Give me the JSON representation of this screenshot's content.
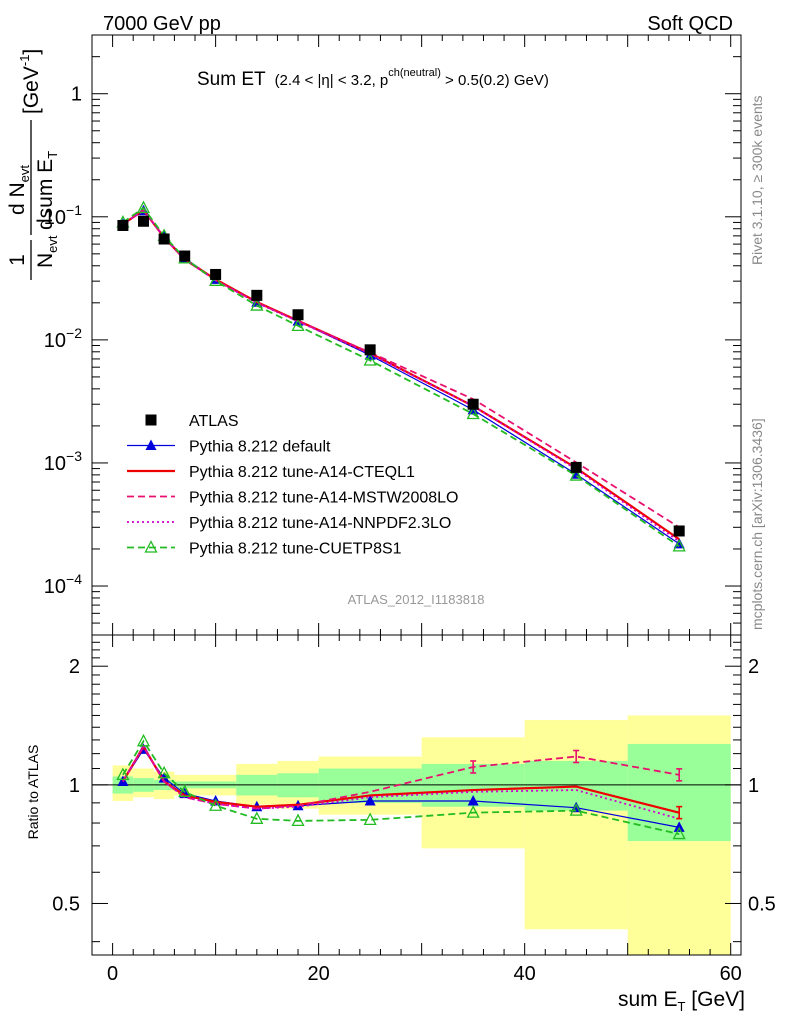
{
  "header": {
    "left": "7000 GeV pp",
    "right": "Soft QCD"
  },
  "side_labels": {
    "rivet": "Rivet 3.1.10, ≥ 300k events",
    "mcplots": "mcplots.cern.ch [arXiv:1306.3436]"
  },
  "main_title": {
    "text": "Sum ET",
    "cut_a": "(2.4 < |",
    "eta": "η",
    "cut_b": "| < 3.2, p",
    "sup": "ch(neutral)",
    "cut_c": " > 0.5(0.2) GeV)"
  },
  "analysis_tag": "ATLAS_2012_I1183818",
  "y_axis_label": {
    "one": "1",
    "n": "N",
    "n_sub": "evt",
    "dn": "d N",
    "dn_sub": "evt",
    "dsum": "dsum E",
    "dsum_sub": "T",
    "unit_a": "[GeV",
    "unit_sup": "-1",
    "unit_b": "]"
  },
  "x_axis_label": {
    "a": "sum E",
    "sub": "T",
    "b": " [GeV]"
  },
  "ratio_label": "Ratio to ATLAS",
  "chart_data": [
    {
      "panel": "main",
      "type": "scatter",
      "scale": "log",
      "xlim": [
        -2,
        61
      ],
      "ylim": [
        4e-05,
        3.0
      ],
      "x_ticks": [
        0,
        20,
        40,
        60
      ],
      "y_tick_labels": [
        {
          "value": 1,
          "base": "1",
          "exp": ""
        },
        {
          "value": 0.1,
          "base": "10",
          "exp": "−1"
        },
        {
          "value": 0.01,
          "base": "10",
          "exp": "−2"
        },
        {
          "value": 0.001,
          "base": "10",
          "exp": "−3"
        },
        {
          "value": 0.0001,
          "base": "10",
          "exp": "−4"
        }
      ],
      "x": [
        1,
        3,
        5,
        7,
        10,
        14,
        18,
        25,
        35,
        45,
        55
      ],
      "series": [
        {
          "name": "ATLAS",
          "color": "#000000",
          "style": "data",
          "marker": "square",
          "values": [
            0.085,
            0.092,
            0.066,
            0.048,
            0.034,
            0.023,
            0.016,
            0.0083,
            0.003,
            0.00092,
            0.00028
          ]
        },
        {
          "name": "Pythia 8.212 default",
          "color": "#0000dd",
          "style": "solid-thin",
          "marker": "triangle-filled",
          "values": [
            0.087,
            0.112,
            0.069,
            0.046,
            0.031,
            0.0202,
            0.0142,
            0.0075,
            0.0027,
            0.00081,
            0.00022
          ]
        },
        {
          "name": "Pythia 8.212 tune-A14-CTEQL1",
          "color": "#ee0000",
          "style": "solid-thick",
          "marker": "none",
          "values": [
            0.087,
            0.113,
            0.068,
            0.045,
            0.031,
            0.0203,
            0.0143,
            0.0078,
            0.0029,
            0.00091,
            0.00024
          ]
        },
        {
          "name": "Pythia 8.212 tune-A14-MSTW2008LO",
          "color": "#e8116e",
          "style": "dashed",
          "marker": "none",
          "values": [
            0.087,
            0.113,
            0.068,
            0.045,
            0.0305,
            0.0201,
            0.0142,
            0.0079,
            0.0033,
            0.00101,
            0.0003
          ]
        },
        {
          "name": "Pythia 8.212 tune-A14-NNPDF2.3LO",
          "color": "#d100d1",
          "style": "dotted",
          "marker": "none",
          "values": [
            0.087,
            0.113,
            0.068,
            0.045,
            0.0305,
            0.02,
            0.0141,
            0.0077,
            0.0029,
            0.00089,
            0.00023
          ]
        },
        {
          "name": "Pythia 8.212 tune-CUETP8S1",
          "color": "#22bb22",
          "style": "dashed",
          "marker": "triangle-open",
          "values": [
            0.09,
            0.118,
            0.07,
            0.046,
            0.0302,
            0.019,
            0.013,
            0.0068,
            0.0025,
            0.00079,
            0.00021
          ]
        }
      ]
    },
    {
      "panel": "ratio",
      "type": "line",
      "scale": "log",
      "xlabel": "sum E_T [GeV]",
      "ylabel": "Ratio to ATLAS",
      "xlim": [
        -2,
        61
      ],
      "ylim": [
        0.37,
        2.4
      ],
      "x_ticks": [
        0,
        20,
        40,
        60
      ],
      "y_ticks": [
        0.5,
        1,
        2
      ],
      "bins": [
        [
          0,
          2
        ],
        [
          2,
          4
        ],
        [
          4,
          6
        ],
        [
          6,
          8
        ],
        [
          8,
          12
        ],
        [
          12,
          16
        ],
        [
          16,
          20
        ],
        [
          20,
          30
        ],
        [
          30,
          40
        ],
        [
          40,
          50
        ],
        [
          50,
          60
        ]
      ],
      "band_stat": [
        [
          0.95,
          1.05
        ],
        [
          0.96,
          1.04
        ],
        [
          0.97,
          1.03
        ],
        [
          0.98,
          1.02
        ],
        [
          0.98,
          1.02
        ],
        [
          0.94,
          1.06
        ],
        [
          0.93,
          1.07
        ],
        [
          0.9,
          1.1
        ],
        [
          0.88,
          1.13
        ],
        [
          0.86,
          1.15
        ],
        [
          0.72,
          1.27
        ]
      ],
      "band_syst": [
        [
          0.91,
          1.12
        ],
        [
          0.93,
          1.1
        ],
        [
          0.92,
          1.08
        ],
        [
          0.94,
          1.06
        ],
        [
          0.94,
          1.06
        ],
        [
          0.89,
          1.13
        ],
        [
          0.87,
          1.15
        ],
        [
          0.84,
          1.18
        ],
        [
          0.69,
          1.32
        ],
        [
          0.43,
          1.46
        ],
        [
          0.35,
          1.5
        ]
      ],
      "x": [
        1,
        3,
        5,
        7,
        10,
        14,
        18,
        25,
        35,
        45,
        55
      ],
      "series": [
        {
          "name": "Pythia 8.212 default",
          "color": "#0000dd",
          "style": "solid-thin",
          "marker": "triangle-filled",
          "values": [
            1.02,
            1.23,
            1.04,
            0.95,
            0.91,
            0.88,
            0.885,
            0.91,
            0.91,
            0.875,
            0.78
          ]
        },
        {
          "name": "Pythia 8.212 tune-A14-CTEQL1",
          "color": "#ee0000",
          "style": "solid-thick",
          "marker": "none",
          "values": [
            1.02,
            1.25,
            1.02,
            0.94,
            0.905,
            0.88,
            0.89,
            0.94,
            0.97,
            0.99,
            0.85
          ]
        },
        {
          "name": "Pythia 8.212 tune-A14-MSTW2008LO",
          "color": "#e8116e",
          "style": "dashed",
          "marker": "errbar",
          "values": [
            1.02,
            1.25,
            1.02,
            0.93,
            0.895,
            0.87,
            0.885,
            0.96,
            1.11,
            1.18,
            1.06
          ]
        },
        {
          "name": "Pythia 8.212 tune-A14-NNPDF2.3LO",
          "color": "#d100d1",
          "style": "dotted",
          "marker": "none",
          "values": [
            1.02,
            1.25,
            1.02,
            0.93,
            0.895,
            0.87,
            0.88,
            0.93,
            0.96,
            0.97,
            0.82
          ]
        },
        {
          "name": "Pythia 8.212 tune-CUETP8S1",
          "color": "#22bb22",
          "style": "dashed",
          "marker": "triangle-open",
          "values": [
            1.06,
            1.29,
            1.07,
            0.96,
            0.885,
            0.82,
            0.81,
            0.815,
            0.85,
            0.86,
            0.75
          ]
        }
      ]
    }
  ]
}
